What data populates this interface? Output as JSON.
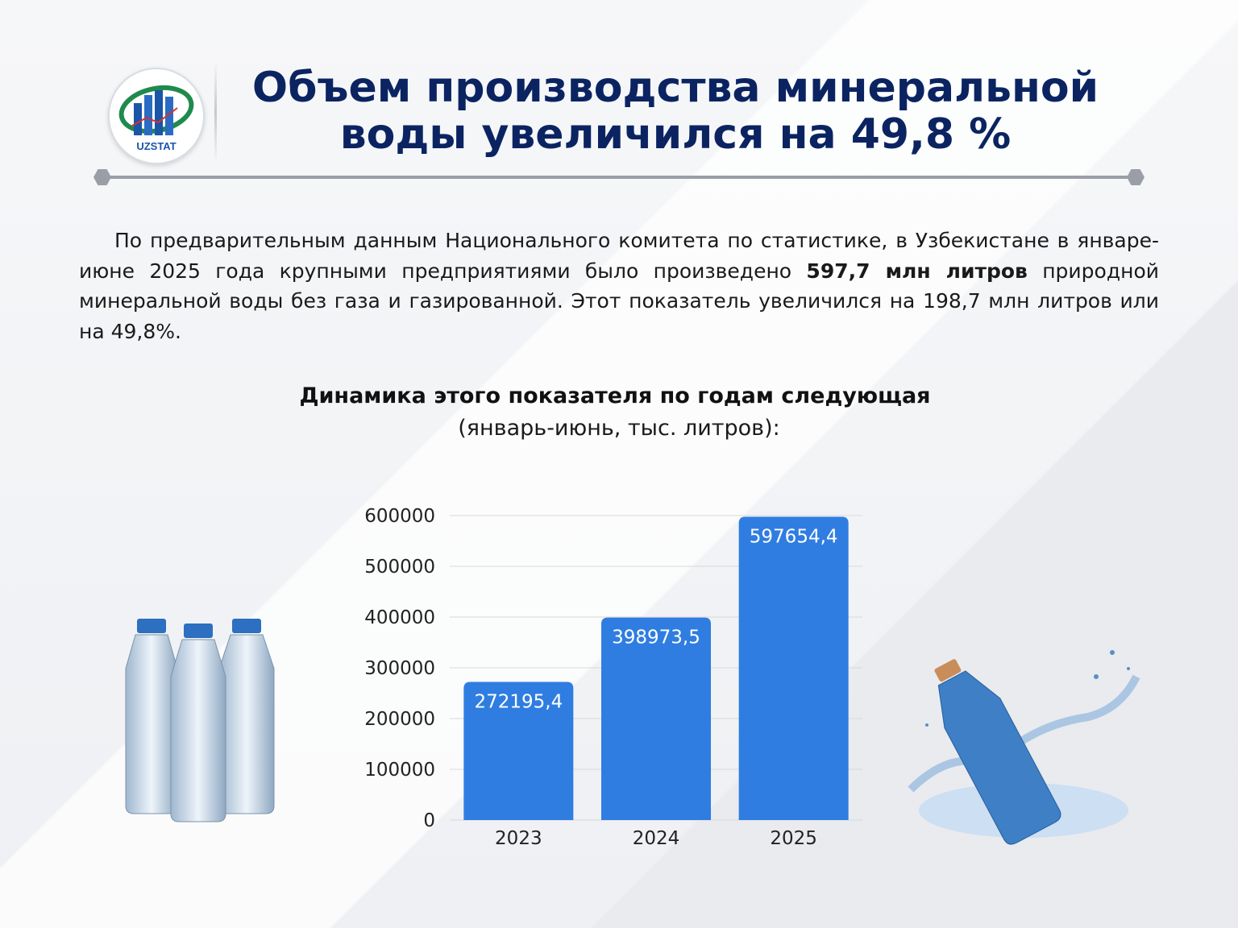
{
  "logo": {
    "text": "UZSTAT"
  },
  "title": {
    "line1": "Объем производства минеральной",
    "line2": "воды увеличился на 49,8 %"
  },
  "paragraph": {
    "before": "По предварительным данным Национального комитета по статистике, в Узбекистане в январе-июне 2025 года крупными предприятиями было произведено ",
    "bold": "597,7 млн литров",
    "after": " природной минеральной воды без газа и газированной. Этот показатель увеличился на 198,7 млн литров или на 49,8%."
  },
  "chart_heading": {
    "title": "Динамика этого показателя по годам следующая",
    "subtitle": "(январь-июнь, тыс. литров):"
  },
  "colors": {
    "bar": "#2f7de1",
    "title": "#0b2461",
    "grid": "#d8d8d8"
  },
  "chart_data": {
    "type": "bar",
    "categories": [
      "2023",
      "2024",
      "2025"
    ],
    "values": [
      272195.4,
      398973.5,
      597654.4
    ],
    "data_labels": [
      "272195,4",
      "398973,5",
      "597654,4"
    ],
    "y_ticks": [
      "0",
      "100000",
      "200000",
      "300000",
      "400000",
      "500000",
      "600000"
    ],
    "ylim": [
      0,
      600000
    ],
    "grid": true
  }
}
